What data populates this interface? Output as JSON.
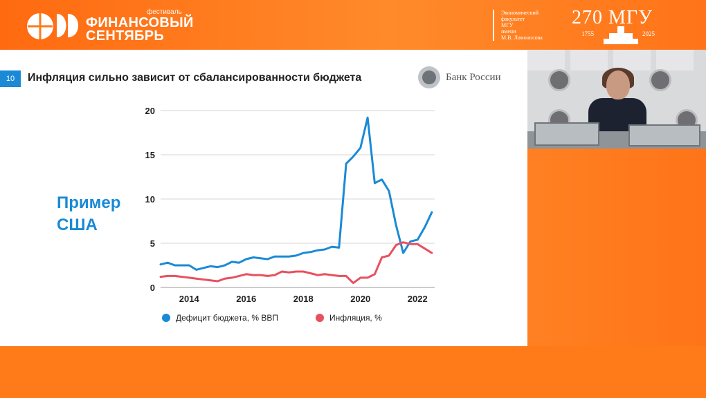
{
  "header": {
    "festival_small": "фестиваль",
    "festival_line1": "ФИНАНСОВЫЙ",
    "festival_line2": "СЕНТЯБРЬ",
    "faculty_lines": [
      "Экономический",
      "факультет",
      "МГУ",
      "имени",
      "М.В. Ломоносова"
    ],
    "msu_title": "270 МГУ",
    "msu_year_start": "1755",
    "msu_year_end": "2025"
  },
  "slide": {
    "number": "10",
    "title": "Инфляция сильно зависит от сбалансированности бюджета",
    "bank_name": "Банк России",
    "example_line1": "Пример",
    "example_line2": "США"
  },
  "colors": {
    "accent_orange": "#ff7a1a",
    "deficit_blue": "#1a8ad6",
    "inflation_red": "#e8505f"
  },
  "chart_data": {
    "type": "line",
    "x_ticks": [
      "2014",
      "2016",
      "2018",
      "2020",
      "2022"
    ],
    "y_ticks": [
      "0",
      "5",
      "10",
      "15",
      "20"
    ],
    "xlim": [
      2013.0,
      2022.6
    ],
    "ylim": [
      0,
      20
    ],
    "grid": "horizontal",
    "legend_position": "bottom",
    "series": [
      {
        "name": "Дефицит бюджета, % ВВП",
        "color": "#1a8ad6",
        "x": [
          2013.0,
          2013.25,
          2013.5,
          2013.75,
          2014.0,
          2014.25,
          2014.5,
          2014.75,
          2015.0,
          2015.25,
          2015.5,
          2015.75,
          2016.0,
          2016.25,
          2016.5,
          2016.75,
          2017.0,
          2017.25,
          2017.5,
          2017.75,
          2018.0,
          2018.25,
          2018.5,
          2018.75,
          2019.0,
          2019.25,
          2019.5,
          2019.75,
          2020.0,
          2020.25,
          2020.5,
          2020.75,
          2021.0,
          2021.25,
          2021.5,
          2021.75,
          2022.0,
          2022.25,
          2022.5
        ],
        "values": [
          2.6,
          2.8,
          2.5,
          2.5,
          2.5,
          2.0,
          2.2,
          2.4,
          2.3,
          2.5,
          2.9,
          2.8,
          3.2,
          3.4,
          3.3,
          3.2,
          3.5,
          3.5,
          3.5,
          3.6,
          3.9,
          4.0,
          4.2,
          4.3,
          4.6,
          4.5,
          14.0,
          14.8,
          15.8,
          19.2,
          11.8,
          12.2,
          10.9,
          7.0,
          3.9,
          5.2,
          5.4,
          6.8,
          8.5
        ]
      },
      {
        "name": "Инфляция, %",
        "color": "#e8505f",
        "x": [
          2013.0,
          2013.25,
          2013.5,
          2013.75,
          2014.0,
          2014.25,
          2014.5,
          2014.75,
          2015.0,
          2015.25,
          2015.5,
          2015.75,
          2016.0,
          2016.25,
          2016.5,
          2016.75,
          2017.0,
          2017.25,
          2017.5,
          2017.75,
          2018.0,
          2018.25,
          2018.5,
          2018.75,
          2019.0,
          2019.25,
          2019.5,
          2019.75,
          2020.0,
          2020.25,
          2020.5,
          2020.75,
          2021.0,
          2021.25,
          2021.5,
          2021.75,
          2022.0,
          2022.25,
          2022.5
        ],
        "values": [
          1.2,
          1.3,
          1.3,
          1.2,
          1.1,
          1.0,
          0.9,
          0.8,
          0.7,
          1.0,
          1.1,
          1.3,
          1.5,
          1.4,
          1.4,
          1.3,
          1.4,
          1.8,
          1.7,
          1.8,
          1.8,
          1.6,
          1.4,
          1.5,
          1.4,
          1.3,
          1.3,
          0.5,
          1.1,
          1.1,
          1.5,
          3.4,
          3.6,
          4.8,
          5.1,
          4.9,
          4.9,
          4.4,
          3.9
        ]
      }
    ]
  }
}
